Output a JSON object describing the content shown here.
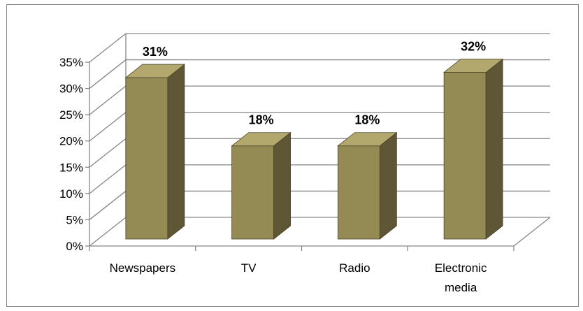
{
  "chart_data": {
    "type": "bar",
    "style": "3d-column",
    "categories": [
      "Newspapers",
      "TV",
      "Radio",
      "Electronic media"
    ],
    "category_lines": [
      [
        "Newspapers"
      ],
      [
        "TV"
      ],
      [
        "Radio"
      ],
      [
        "Electronic",
        "media"
      ]
    ],
    "values": [
      31,
      18,
      18,
      32
    ],
    "data_labels": [
      "31%",
      "18%",
      "18%",
      "32%"
    ],
    "ylim": [
      0,
      35
    ],
    "yticks": [
      0,
      5,
      10,
      15,
      20,
      25,
      30,
      35
    ],
    "ytick_labels": [
      "0%",
      "5%",
      "10%",
      "15%",
      "20%",
      "25%",
      "30%",
      "35%"
    ],
    "title": "",
    "xlabel": "",
    "ylabel": "",
    "grid": true,
    "legend": "none",
    "colors": {
      "bar_front": "#948a54",
      "bar_side": "#5e5634",
      "bar_top": "#b2a86e",
      "bar_edge": "#4a4428",
      "grid": "#868686",
      "wall_edge": "#868686"
    }
  }
}
